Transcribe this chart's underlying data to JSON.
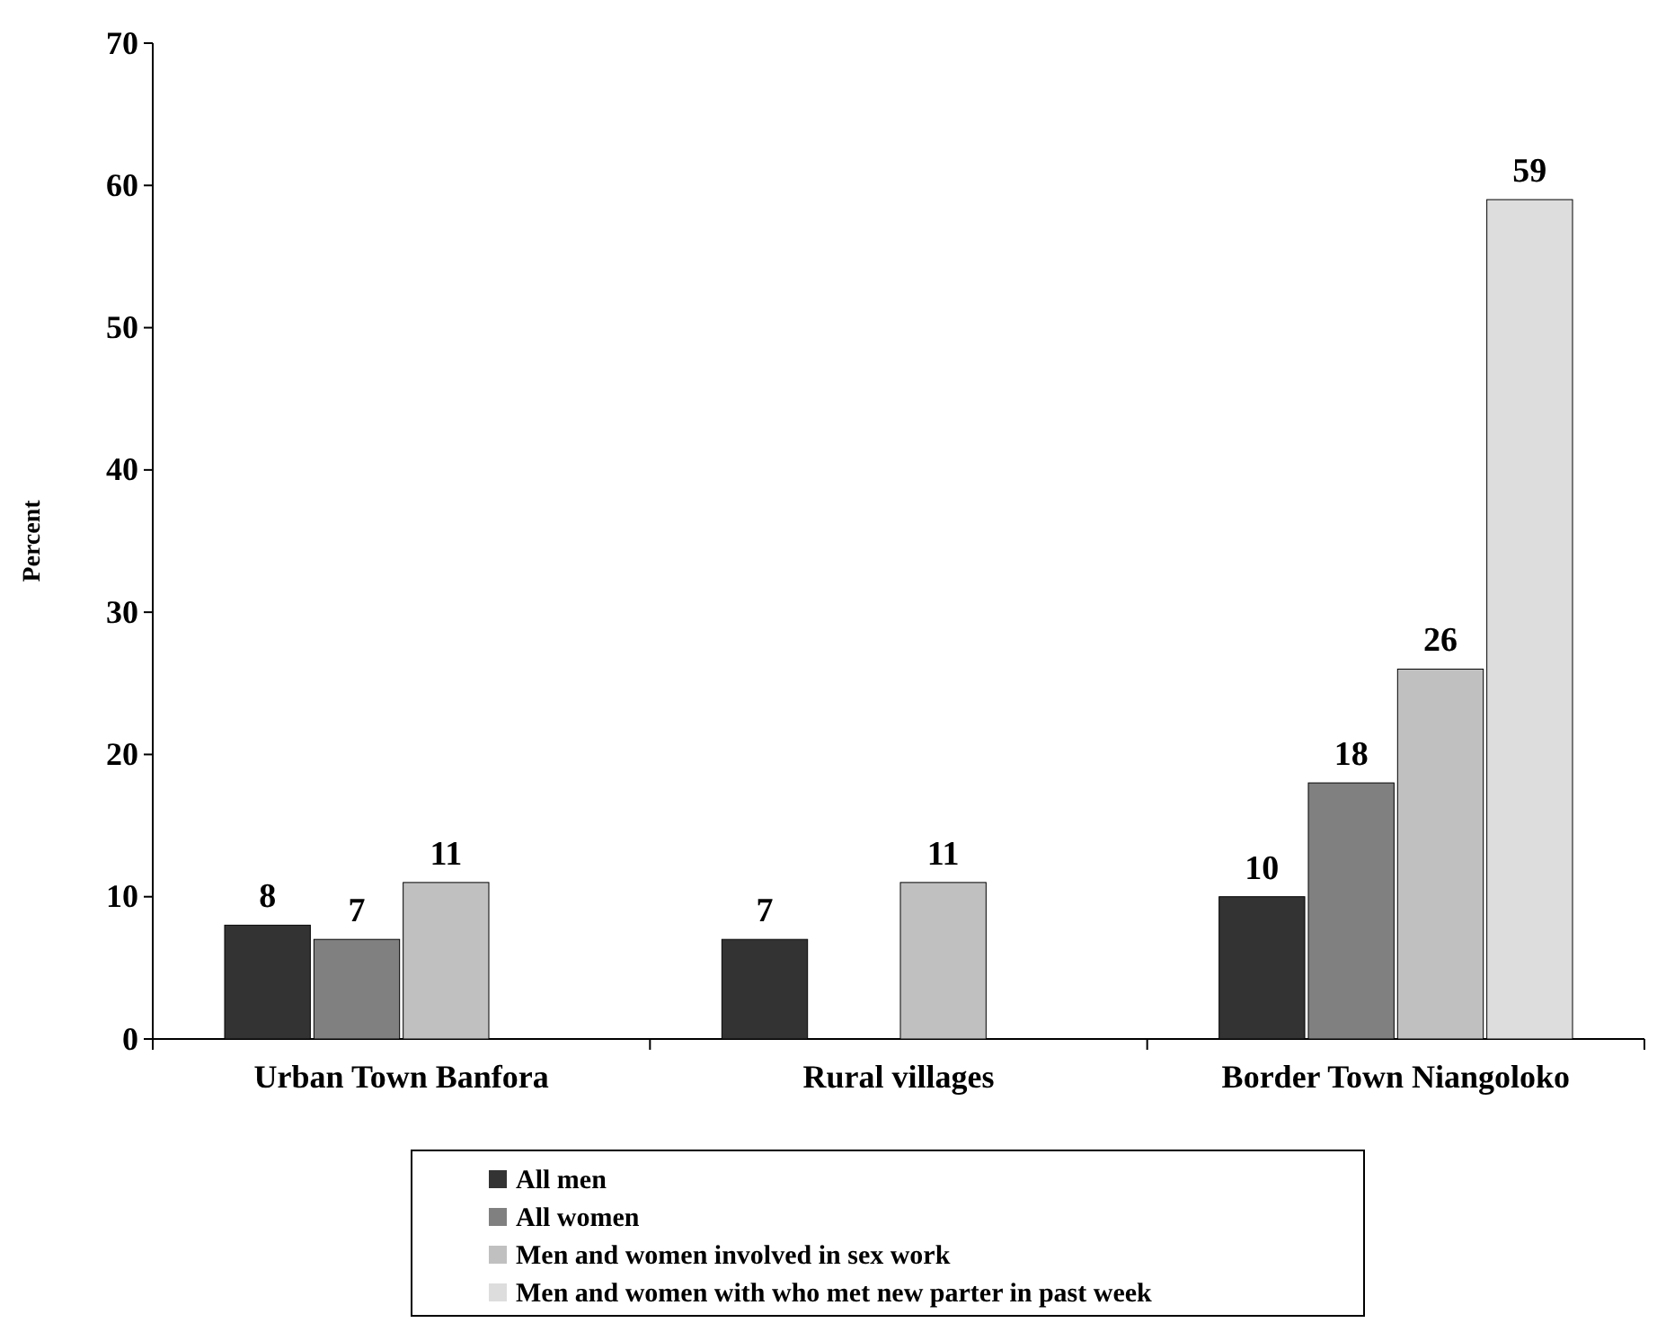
{
  "chart_data": {
    "type": "bar",
    "ylabel": "Percent",
    "categories": [
      "Urban Town Banfora",
      "Rural villages",
      "Border Town Niangoloko"
    ],
    "series": [
      {
        "name": "All men",
        "color": "#333333",
        "values": [
          8,
          7,
          10
        ]
      },
      {
        "name": "All women",
        "color": "#808080",
        "values": [
          7,
          null,
          18
        ]
      },
      {
        "name": "Men and women involved in sex work",
        "color": "#c0c0c0",
        "values": [
          11,
          11,
          26
        ]
      },
      {
        "name": "Men and women with who met new parter in past week",
        "color": "#dddddd",
        "values": [
          null,
          null,
          59
        ]
      }
    ],
    "ylim": [
      0,
      70
    ],
    "yticks": [
      0,
      10,
      20,
      30,
      40,
      50,
      60,
      70
    ],
    "grid": false,
    "legend": "bottom",
    "data_labels": true
  }
}
